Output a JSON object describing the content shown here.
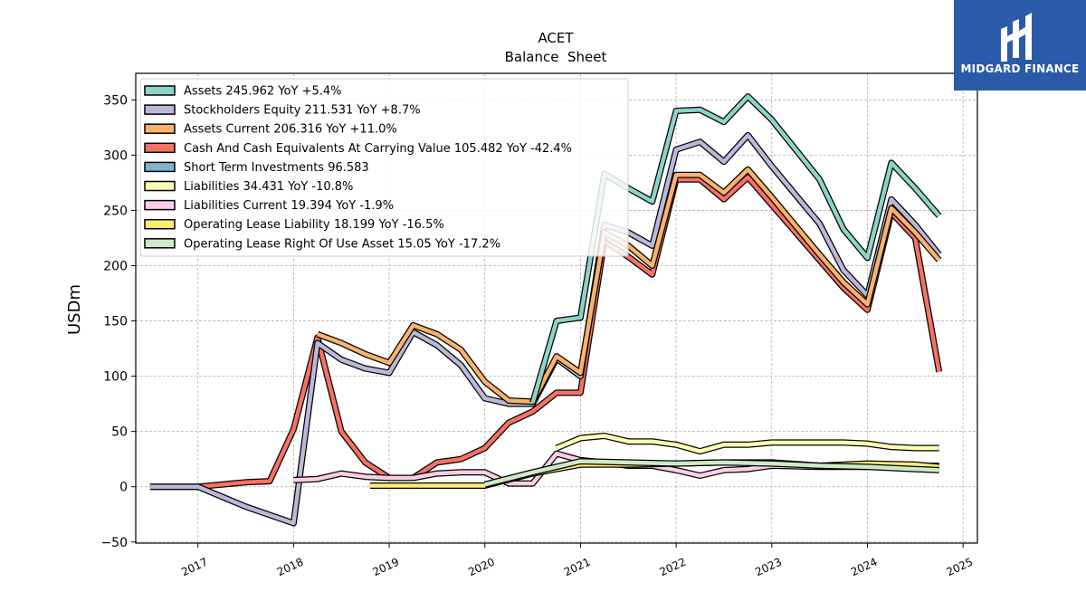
{
  "header": {
    "title": "ACET",
    "subtitle": "Balance  Sheet"
  },
  "logo": {
    "text": "MIDGARD FINANCE",
    "icon": "midgard-m-logo-icon",
    "background": "#2b5ba8"
  },
  "chart_data": {
    "type": "line",
    "title": "ACET",
    "subtitle": "Balance  Sheet",
    "xlabel": "",
    "ylabel": "USDm",
    "xlim": [
      2016.35,
      2025.15
    ],
    "ylim": [
      -51,
      374
    ],
    "x_ticks": [
      2017,
      2018,
      2019,
      2020,
      2021,
      2022,
      2023,
      2024,
      2025
    ],
    "x_tick_labels": [
      "2017",
      "2018",
      "2019",
      "2020",
      "2021",
      "2022",
      "2023",
      "2024",
      "2025"
    ],
    "y_ticks": [
      -50,
      0,
      50,
      100,
      150,
      200,
      250,
      300,
      350
    ],
    "y_tick_labels": [
      "−50",
      "0",
      "50",
      "100",
      "150",
      "200",
      "250",
      "300",
      "350"
    ],
    "grid": true,
    "legend_position": "top-left",
    "series": [
      {
        "name": "Cash And Cash Equivalents At Carrying Value",
        "legend": "Cash And Cash Equivalents At Carrying Value  105.482 YoY -42.4%",
        "color": "#f47264",
        "points": [
          [
            2016.5,
            0
          ],
          [
            2017.0,
            0
          ],
          [
            2017.5,
            4
          ],
          [
            2017.75,
            5
          ],
          [
            2018.0,
            52
          ],
          [
            2018.25,
            135
          ],
          [
            2018.5,
            50
          ],
          [
            2018.75,
            22
          ],
          [
            2019.0,
            8
          ],
          [
            2019.25,
            8
          ],
          [
            2019.5,
            22
          ],
          [
            2019.75,
            25
          ],
          [
            2020.0,
            35
          ],
          [
            2020.25,
            58
          ],
          [
            2020.5,
            68
          ],
          [
            2020.75,
            85
          ],
          [
            2021.0,
            85
          ],
          [
            2021.25,
            222
          ],
          [
            2021.5,
            208
          ],
          [
            2021.75,
            192
          ],
          [
            2022.0,
            278
          ],
          [
            2022.25,
            278
          ],
          [
            2022.5,
            260
          ],
          [
            2022.75,
            280
          ],
          [
            2023.0,
            255
          ],
          [
            2023.5,
            205
          ],
          [
            2023.75,
            180
          ],
          [
            2024.0,
            160
          ],
          [
            2024.25,
            248
          ],
          [
            2024.5,
            225
          ],
          [
            2024.75,
            104
          ]
        ]
      },
      {
        "name": "Stockholders Equity",
        "legend": "Stockholders Equity  211.531 YoY +8.7%",
        "color": "#bcb8da",
        "points": [
          [
            2016.5,
            0
          ],
          [
            2017.0,
            0
          ],
          [
            2017.5,
            -18
          ],
          [
            2018.0,
            -33
          ],
          [
            2018.25,
            130
          ],
          [
            2018.5,
            115
          ],
          [
            2018.75,
            107
          ],
          [
            2019.0,
            103
          ],
          [
            2019.25,
            140
          ],
          [
            2019.5,
            128
          ],
          [
            2019.75,
            110
          ],
          [
            2020.0,
            80
          ],
          [
            2020.25,
            75
          ],
          [
            2020.5,
            75
          ],
          [
            2020.75,
            116
          ],
          [
            2021.0,
            100
          ],
          [
            2021.25,
            237
          ],
          [
            2021.5,
            230
          ],
          [
            2021.75,
            218
          ],
          [
            2022.0,
            305
          ],
          [
            2022.25,
            312
          ],
          [
            2022.5,
            294
          ],
          [
            2022.75,
            318
          ],
          [
            2023.0,
            290
          ],
          [
            2023.5,
            238
          ],
          [
            2023.75,
            196
          ],
          [
            2024.0,
            173
          ],
          [
            2024.25,
            260
          ],
          [
            2024.5,
            237
          ],
          [
            2024.75,
            210
          ]
        ]
      },
      {
        "name": "Assets Current",
        "legend": "Assets Current  206.316 YoY +11.0%",
        "color": "#f7b26c",
        "points": [
          [
            2018.25,
            138
          ],
          [
            2018.5,
            130
          ],
          [
            2018.75,
            120
          ],
          [
            2019.0,
            112
          ],
          [
            2019.25,
            146
          ],
          [
            2019.5,
            138
          ],
          [
            2019.75,
            124
          ],
          [
            2020.0,
            95
          ],
          [
            2020.25,
            78
          ],
          [
            2020.5,
            77
          ],
          [
            2020.75,
            118
          ],
          [
            2021.0,
            103
          ],
          [
            2021.25,
            230
          ],
          [
            2021.5,
            218
          ],
          [
            2021.75,
            200
          ],
          [
            2022.0,
            282
          ],
          [
            2022.25,
            282
          ],
          [
            2022.5,
            266
          ],
          [
            2022.75,
            287
          ],
          [
            2023.0,
            262
          ],
          [
            2023.5,
            210
          ],
          [
            2023.75,
            185
          ],
          [
            2024.0,
            165
          ],
          [
            2024.25,
            252
          ],
          [
            2024.5,
            230
          ],
          [
            2024.75,
            205
          ]
        ]
      },
      {
        "name": "Assets",
        "legend": "Assets  245.962 YoY +5.4%",
        "color": "#8dd3c7",
        "points": [
          [
            2020.5,
            76
          ],
          [
            2020.75,
            150
          ],
          [
            2021.0,
            153
          ],
          [
            2021.25,
            283
          ],
          [
            2021.5,
            270
          ],
          [
            2021.75,
            258
          ],
          [
            2022.0,
            340
          ],
          [
            2022.25,
            341
          ],
          [
            2022.5,
            330
          ],
          [
            2022.75,
            353
          ],
          [
            2023.0,
            332
          ],
          [
            2023.5,
            278
          ],
          [
            2023.75,
            233
          ],
          [
            2024.0,
            207
          ],
          [
            2024.25,
            293
          ],
          [
            2024.5,
            270
          ],
          [
            2024.75,
            245
          ]
        ]
      },
      {
        "name": "Short Term Investments",
        "legend": "Short Term Investments  96.583",
        "color": "#80b1d3",
        "points": []
      },
      {
        "name": "Liabilities",
        "legend": "Liabilities  34.431 YoY -10.8%",
        "color": "#ffffb3",
        "points": [
          [
            2020.75,
            35
          ],
          [
            2021.0,
            44
          ],
          [
            2021.25,
            46
          ],
          [
            2021.5,
            41
          ],
          [
            2021.75,
            41
          ],
          [
            2022.0,
            38
          ],
          [
            2022.25,
            32
          ],
          [
            2022.5,
            38
          ],
          [
            2022.75,
            38
          ],
          [
            2023.0,
            40
          ],
          [
            2023.25,
            40
          ],
          [
            2023.5,
            40
          ],
          [
            2023.75,
            40
          ],
          [
            2024.0,
            39
          ],
          [
            2024.25,
            36
          ],
          [
            2024.5,
            35
          ],
          [
            2024.75,
            35
          ]
        ]
      },
      {
        "name": "Liabilities Current",
        "legend": "Liabilities Current  19.394 YoY -1.9%",
        "color": "#fccde5",
        "points": [
          [
            2018.0,
            6
          ],
          [
            2018.25,
            7
          ],
          [
            2018.5,
            12
          ],
          [
            2018.75,
            9
          ],
          [
            2019.0,
            8
          ],
          [
            2019.25,
            8
          ],
          [
            2019.5,
            12
          ],
          [
            2019.75,
            13
          ],
          [
            2020.0,
            13
          ],
          [
            2020.25,
            3
          ],
          [
            2020.5,
            3
          ],
          [
            2020.75,
            30
          ],
          [
            2021.0,
            24
          ],
          [
            2021.25,
            22
          ],
          [
            2021.5,
            19
          ],
          [
            2021.75,
            19
          ],
          [
            2022.0,
            15
          ],
          [
            2022.25,
            10
          ],
          [
            2022.5,
            15
          ],
          [
            2022.75,
            16
          ],
          [
            2023.0,
            19
          ],
          [
            2023.5,
            18
          ],
          [
            2024.0,
            18
          ],
          [
            2024.75,
            19
          ]
        ]
      },
      {
        "name": "Operating Lease Liability",
        "legend": "Operating Lease Liability  18.199 YoY -16.5%",
        "color": "#ffed6f",
        "points": [
          [
            2018.8,
            1
          ],
          [
            2019.0,
            1
          ],
          [
            2019.5,
            1
          ],
          [
            2020.0,
            1
          ],
          [
            2020.5,
            12
          ],
          [
            2021.0,
            20
          ],
          [
            2021.5,
            20
          ],
          [
            2022.0,
            21
          ],
          [
            2022.5,
            22
          ],
          [
            2023.0,
            22
          ],
          [
            2023.5,
            19
          ],
          [
            2024.0,
            21
          ],
          [
            2024.5,
            20
          ],
          [
            2024.75,
            18
          ]
        ]
      },
      {
        "name": "Operating Lease Right Of Use Asset",
        "legend": "Operating Lease Right Of Use Asset  15.05 YoY -17.2%",
        "color": "#ccebc5",
        "points": [
          [
            2020.0,
            2
          ],
          [
            2020.5,
            13
          ],
          [
            2021.0,
            23
          ],
          [
            2021.5,
            22
          ],
          [
            2022.0,
            21
          ],
          [
            2022.5,
            22
          ],
          [
            2023.0,
            21
          ],
          [
            2023.5,
            19
          ],
          [
            2024.0,
            18
          ],
          [
            2024.5,
            16
          ],
          [
            2024.75,
            15
          ]
        ]
      }
    ],
    "legend_order": [
      "Assets",
      "Stockholders Equity",
      "Assets Current",
      "Cash And Cash Equivalents At Carrying Value",
      "Short Term Investments",
      "Liabilities",
      "Liabilities Current",
      "Operating Lease Liability",
      "Operating Lease Right Of Use Asset"
    ]
  }
}
